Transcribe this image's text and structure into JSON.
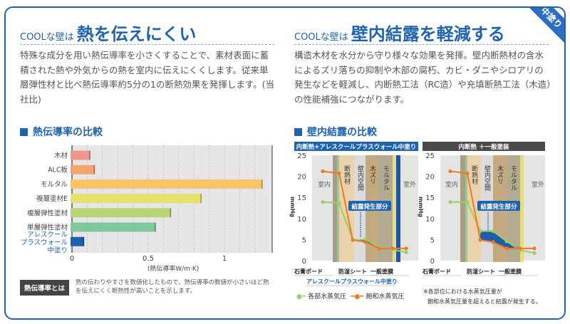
{
  "ribbon": "中塗り",
  "left": {
    "title_prefix": "COOLな壁は",
    "title_main": "熱を伝えにくい",
    "paragraph": "特殊な成分を用い熱伝導率を小さくすることで、素材表面に蓄積された熱や外気からの熱を室内に伝えにくくします。従来単層弾性材と比べ熱伝導率約5分の1の断熱効果を発揮します。(当社比)",
    "section": "熱伝導率の比較",
    "note_label": "熱伝導率とは",
    "note_text": "熱の伝わりやすさを数値化したもので、熱伝導率の数値が小さいほど熱を伝えにくく断熱性が高いことを示します。"
  },
  "right": {
    "title_prefix": "COOLな壁は",
    "title_main": "壁内結露を軽減する",
    "paragraph": "構造木材を水分から守り様々な効果を発揮。壁内断熱材の含水によるズリ落ちの抑制や木部の腐朽、カビ・ダニやシロアリの発生などを軽減し、内断熱工法（RC造）や充填断熱工法（木造）の性能補強につながります。",
    "section": "壁内結露の比較",
    "legend": [
      "各部水蒸気圧",
      "飽和水蒸気圧"
    ],
    "footnote": [
      "※各部位における水蒸気圧量が",
      "飽和水蒸気圧量を超えると結露が発生する。"
    ]
  },
  "chart_data": [
    {
      "type": "bar",
      "orientation": "horizontal",
      "xlabel": "(熱伝導率W/m·K)",
      "xticks": [
        "0",
        "0.5",
        "1"
      ],
      "xlim": [
        0,
        1.3
      ],
      "grid": true,
      "categories": [
        "木材",
        "ALC板",
        "モルタル",
        "複層塗材E",
        "複層弾性塗材",
        "単層弾性塗材",
        "アレスクールプラスウォール中塗り"
      ],
      "category_lines": [
        [
          "木材"
        ],
        [
          "ALC板"
        ],
        [
          "モルタル"
        ],
        [
          "複層塗材E"
        ],
        [
          "複層弾性塗材"
        ],
        [
          "単層弾性塗材"
        ],
        [
          "アレスクール",
          "プラスウォール",
          "中塗り"
        ]
      ],
      "values": [
        0.12,
        0.15,
        1.25,
        0.85,
        0.65,
        0.55,
        0.08
      ],
      "colors": [
        "#f0968a",
        "#f3a36e",
        "#f8c465",
        "#e6e06c",
        "#b9d576",
        "#80c89a",
        "#1d5fb0"
      ]
    },
    {
      "type": "line",
      "title": "内断熱+アレスクールプラスウォール中塗り",
      "header_color": "#1f63b0",
      "ylabel": "mmHg",
      "ylim": [
        0,
        25
      ],
      "yticks": [
        "0",
        "5",
        "10",
        "15",
        "20",
        "25"
      ],
      "layers": [
        "断熱材",
        "壁内空間",
        "木ズリ",
        "モルタル"
      ],
      "room_in": "室内",
      "room_out": "室外",
      "callout": "結露発生部分",
      "bottom_labels": [
        "石膏ボード",
        "防湿シート",
        "一般塗膜",
        "アレスクールプラスウォール中塗り"
      ],
      "series": [
        {
          "name": "各部水蒸気圧",
          "color": "#9bd063",
          "values": [
            13.9,
            13.7,
            4.9,
            5.0,
            3.2,
            2.6,
            2.0
          ]
        },
        {
          "name": "飽和水蒸気圧",
          "color": "#f07a22",
          "values": [
            21.2,
            20.7,
            4.9,
            4.4,
            2.9,
            2.9,
            2.9
          ]
        }
      ]
    },
    {
      "type": "line",
      "title": "内断熱 ＋一般塗装",
      "header_color": "#4a4a4a",
      "ylabel": "mmHg",
      "ylim": [
        0,
        25
      ],
      "yticks": [
        "0",
        "5",
        "10",
        "15",
        "20",
        "25"
      ],
      "layers": [
        "断熱材",
        "壁内空間",
        "木ズリ",
        "モルタル"
      ],
      "room_in": "室内",
      "room_out": "室外",
      "callout": "結露発生部分",
      "bottom_labels": [
        "石膏ボード",
        "防湿シート",
        "一般塗膜"
      ],
      "series": [
        {
          "name": "各部水蒸気圧",
          "color": "#9bd063",
          "values": [
            13.9,
            13.9,
            7.0,
            7.0,
            4.6,
            2.5,
            1.8
          ]
        },
        {
          "name": "飽和水蒸気圧",
          "color": "#f07a22",
          "values": [
            21.2,
            20.7,
            4.9,
            4.4,
            2.9,
            2.9,
            2.9
          ]
        }
      ]
    }
  ]
}
